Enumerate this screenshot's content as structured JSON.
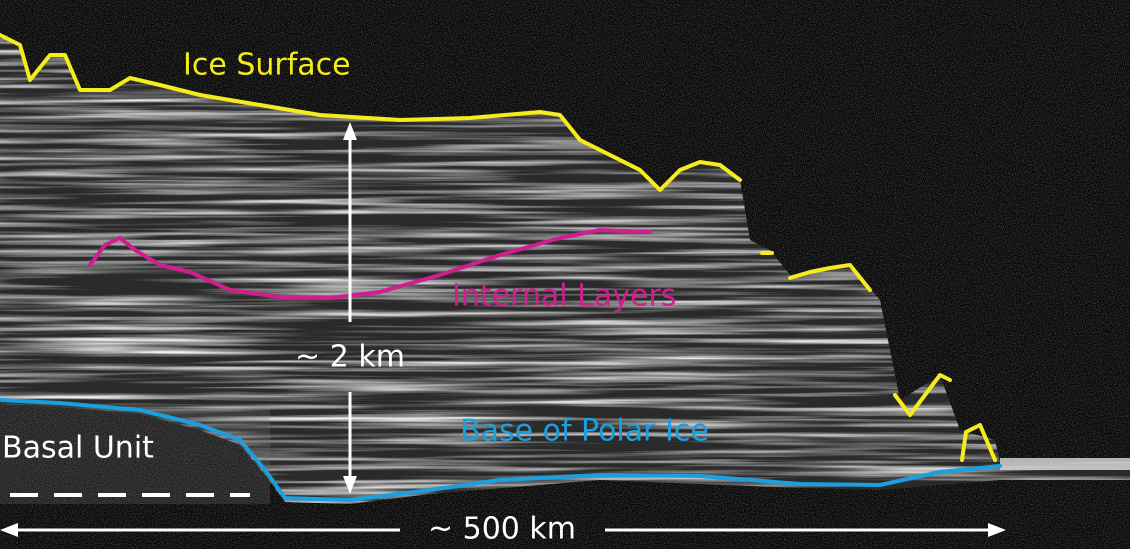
{
  "labels": {
    "ice_surface": "Ice Surface",
    "internal_layers": "Internal Layers",
    "thickness": "~ 2 km",
    "base": "Base of Polar Ice",
    "basal_unit": "Basal Unit",
    "width": "~ 500 km"
  }
}
